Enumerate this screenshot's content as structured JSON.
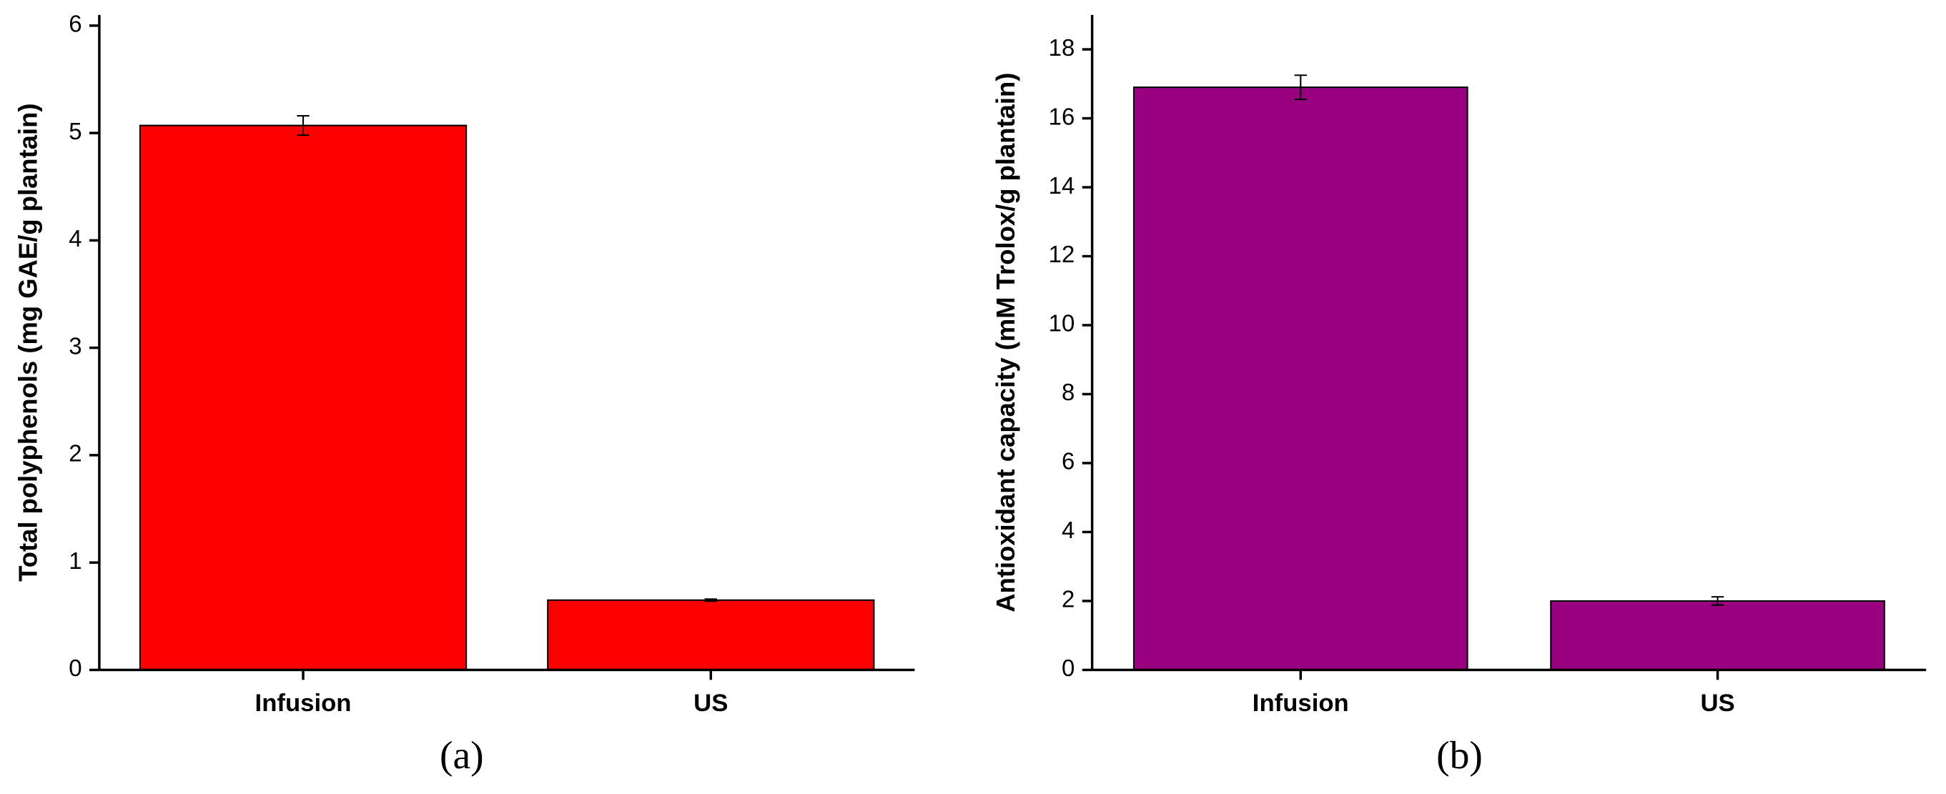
{
  "chart_data": [
    {
      "type": "bar",
      "panel_label": "(a)",
      "y_label": "Total polyphenols (mg GAE/g plantain)",
      "categories": [
        "Infusion",
        "US"
      ],
      "values": [
        5.07,
        0.65
      ],
      "errors": [
        0.09,
        0.01
      ],
      "color": "#ff0000",
      "ylim": [
        0,
        6.1
      ],
      "yticks": [
        0,
        1,
        2,
        3,
        4,
        5,
        6
      ]
    },
    {
      "type": "bar",
      "panel_label": "(b)",
      "y_label": "Antioxidant capacity (mM Trolox/g plantain)",
      "categories": [
        "Infusion",
        "US"
      ],
      "values": [
        16.9,
        2.0
      ],
      "errors": [
        0.35,
        0.12
      ],
      "color": "#990080",
      "ylim": [
        0,
        19
      ],
      "yticks": [
        0,
        2,
        4,
        6,
        8,
        10,
        12,
        14,
        16,
        18
      ]
    }
  ]
}
